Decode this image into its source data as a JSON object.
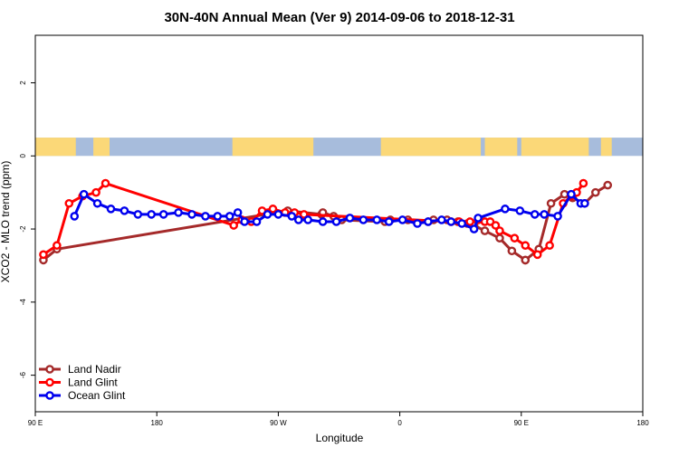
{
  "chart_data": {
    "type": "line",
    "title": "30N-40N Annual Mean (Ver 9)   2014-09-06 to 2018-12-31",
    "xlabel": "Longitude",
    "ylabel": "XCO2 - MLO trend (ppm)",
    "xlim": [
      90,
      540
    ],
    "ylim": [
      -7,
      3.3
    ],
    "x_ticks": [
      {
        "value": 90,
        "label": "90 E"
      },
      {
        "value": 180,
        "label": "180"
      },
      {
        "value": 270,
        "label": "90 W"
      },
      {
        "value": 360,
        "label": "0"
      },
      {
        "value": 450,
        "label": "90 E"
      },
      {
        "value": 540,
        "label": "180"
      }
    ],
    "y_ticks": [
      {
        "value": 2,
        "label": "2"
      },
      {
        "value": 0,
        "label": "0"
      },
      {
        "value": -2,
        "label": "-2"
      },
      {
        "value": -4,
        "label": "-4"
      },
      {
        "value": -6,
        "label": "-6"
      }
    ],
    "map_band": {
      "y_range": [
        0,
        0.5
      ],
      "ocean_color": "#a7bcdc",
      "land_color": "#fbd878",
      "land_longitudes": [
        [
          90,
          120
        ],
        [
          133,
          145
        ],
        [
          236,
          296
        ],
        [
          346,
          420
        ],
        [
          423,
          447
        ],
        [
          450,
          500
        ],
        [
          509,
          517
        ]
      ]
    },
    "legend_position": "bottom-left",
    "series": [
      {
        "name": "Land Nadir",
        "color": "#a52a2a",
        "x": [
          96,
          106,
          277,
          302,
          303,
          311,
          317,
          349,
          353,
          366,
          381,
          385,
          395,
          403,
          410,
          415,
          423,
          434,
          443,
          453,
          453,
          463,
          472,
          482,
          488,
          497,
          505,
          514
        ],
        "y": [
          -2.85,
          -2.55,
          -1.5,
          -1.6,
          -1.55,
          -1.65,
          -1.75,
          -1.8,
          -1.75,
          -1.75,
          -1.8,
          -1.75,
          -1.75,
          -1.8,
          -1.85,
          -1.9,
          -2.05,
          -2.25,
          -2.6,
          -2.85,
          -2.85,
          -2.55,
          -1.3,
          -1.05,
          -1.15,
          -1.3,
          -1.0,
          -0.8
        ]
      },
      {
        "name": "Land Glint",
        "color": "#ff0000",
        "x": [
          96,
          106,
          115,
          125,
          135,
          142,
          237,
          243,
          250,
          258,
          266,
          275,
          282,
          289,
          398,
          404,
          412,
          418,
          423,
          427,
          431,
          434,
          445,
          453,
          462,
          471,
          481,
          487,
          491,
          496
        ],
        "y": [
          -2.7,
          -2.45,
          -1.3,
          -1.1,
          -1.0,
          -0.75,
          -1.9,
          -1.75,
          -1.8,
          -1.5,
          -1.45,
          -1.55,
          -1.55,
          -1.6,
          -1.8,
          -1.8,
          -1.8,
          -1.75,
          -1.8,
          -1.8,
          -1.9,
          -2.05,
          -2.25,
          -2.45,
          -2.7,
          -2.45,
          -1.3,
          -1.1,
          -1.0,
          -0.75
        ]
      },
      {
        "name": "Ocean Glint",
        "color": "#0000ee",
        "x": [
          119,
          126,
          136,
          146,
          156,
          166,
          176,
          185,
          196,
          206,
          216,
          225,
          234,
          240,
          245,
          254,
          262,
          270,
          280,
          285,
          292,
          303,
          313,
          323,
          333,
          343,
          352,
          362,
          373,
          381,
          391,
          398,
          406,
          415,
          418,
          438,
          449,
          460,
          467,
          477,
          487,
          494,
          497
        ],
        "y": [
          -1.65,
          -1.05,
          -1.3,
          -1.45,
          -1.5,
          -1.6,
          -1.6,
          -1.6,
          -1.55,
          -1.6,
          -1.65,
          -1.65,
          -1.65,
          -1.55,
          -1.8,
          -1.8,
          -1.6,
          -1.6,
          -1.65,
          -1.75,
          -1.75,
          -1.8,
          -1.8,
          -1.7,
          -1.75,
          -1.75,
          -1.8,
          -1.75,
          -1.85,
          -1.8,
          -1.75,
          -1.8,
          -1.85,
          -2.0,
          -1.7,
          -1.45,
          -1.5,
          -1.6,
          -1.6,
          -1.65,
          -1.05,
          -1.3,
          -1.3
        ]
      }
    ]
  }
}
